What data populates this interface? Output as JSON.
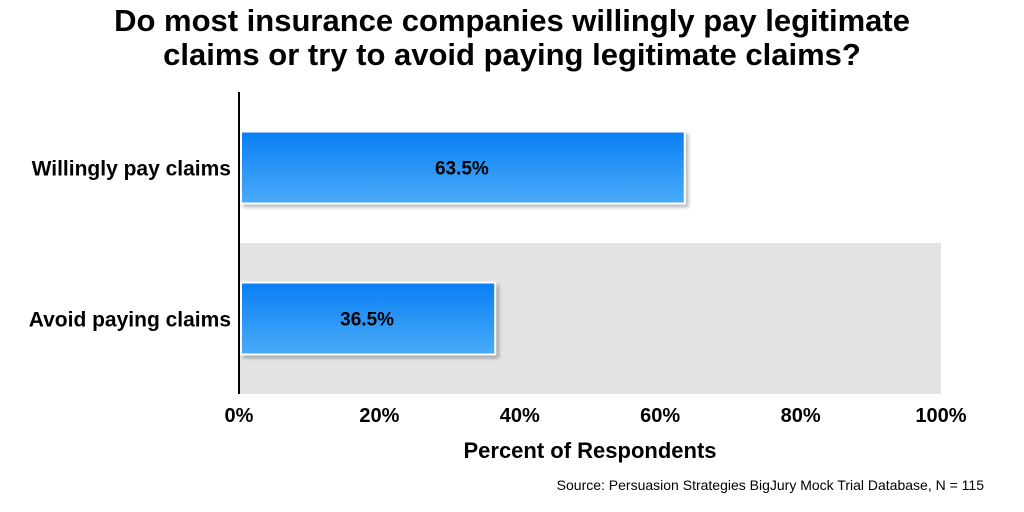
{
  "chart_data": {
    "type": "bar",
    "orientation": "horizontal",
    "title_lines": [
      "Do most insurance companies willingly pay legitimate",
      "claims or try to avoid paying legitimate claims?"
    ],
    "categories": [
      "Willingly pay claims",
      "Avoid paying claims"
    ],
    "values": [
      63.5,
      36.5
    ],
    "data_labels": [
      "63.5%",
      "36.5%"
    ],
    "xlabel": "Percent of Respondents",
    "ylabel": "",
    "xlim": [
      0,
      100
    ],
    "x_ticks": [
      0,
      20,
      40,
      60,
      80,
      100
    ],
    "x_tick_labels": [
      "0%",
      "20%",
      "40%",
      "60%",
      "80%",
      "100%"
    ],
    "grid": false,
    "legend": "none",
    "colors": {
      "bar_top": "#0a7ff5",
      "bar_bottom": "#4aabf8",
      "band": "#e3e3e3"
    }
  },
  "source": "Source: Persuasion Strategies BigJury Mock Trial Database, N = 115"
}
